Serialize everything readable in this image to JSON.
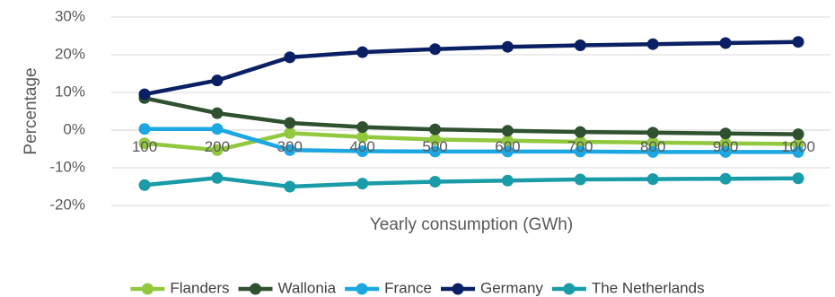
{
  "chart_data": {
    "type": "line",
    "title": "",
    "xlabel": "Yearly consumption (GWh)",
    "ylabel": "Percentage",
    "x": [
      100,
      200,
      300,
      400,
      500,
      600,
      700,
      800,
      900,
      1000
    ],
    "x_tick_labels": [
      "100",
      "200",
      "300",
      "400",
      "500",
      "600",
      "700",
      "800",
      "900",
      "1000"
    ],
    "ylim": [
      -0.2,
      0.3
    ],
    "y_ticks": [
      -0.2,
      -0.1,
      0,
      0.1,
      0.2,
      0.3
    ],
    "y_tick_labels": [
      "-20%",
      "-10%",
      "0%",
      "10%",
      "20%",
      "30%"
    ],
    "grid": true,
    "legend_position": "bottom",
    "series": [
      {
        "name": "Flanders",
        "color": "#92C83E",
        "values": [
          -0.035,
          -0.053,
          -0.008,
          -0.018,
          -0.025,
          -0.028,
          -0.031,
          -0.033,
          -0.035,
          -0.037
        ]
      },
      {
        "name": "Wallonia",
        "color": "#2F5130",
        "values": [
          0.085,
          0.045,
          0.019,
          0.008,
          0.002,
          -0.002,
          -0.005,
          -0.007,
          -0.009,
          -0.011
        ]
      },
      {
        "name": "France",
        "color": "#1CA7E3",
        "values": [
          0.003,
          0.003,
          -0.053,
          -0.056,
          -0.057,
          -0.057,
          -0.057,
          -0.058,
          -0.058,
          -0.058
        ]
      },
      {
        "name": "Germany",
        "color": "#0B2064",
        "values": [
          0.095,
          0.132,
          0.193,
          0.207,
          0.215,
          0.221,
          0.225,
          0.228,
          0.231,
          0.234
        ]
      },
      {
        "name": "The Netherlands",
        "color": "#1A9BA8",
        "values": [
          -0.146,
          -0.127,
          -0.15,
          -0.142,
          -0.137,
          -0.134,
          -0.131,
          -0.13,
          -0.129,
          -0.128
        ]
      }
    ]
  }
}
